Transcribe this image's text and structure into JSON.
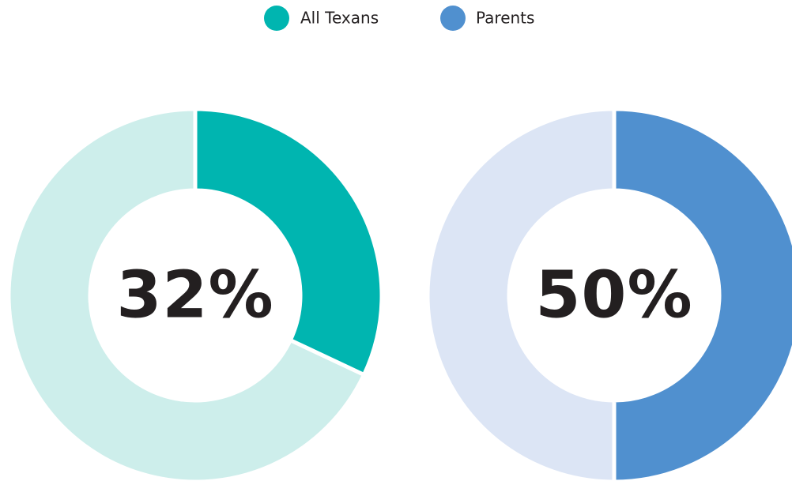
{
  "chart_data": [
    {
      "type": "donut",
      "name": "All Texans",
      "color": "#00b5b0",
      "track_color": "#cdeeeb",
      "values": [
        32
      ],
      "value_labels": [
        "32%"
      ]
    },
    {
      "type": "donut",
      "name": "Parents",
      "color": "#5090cf",
      "track_color": "#dce5f5",
      "values": [
        50
      ],
      "value_labels": [
        "50%"
      ]
    }
  ]
}
